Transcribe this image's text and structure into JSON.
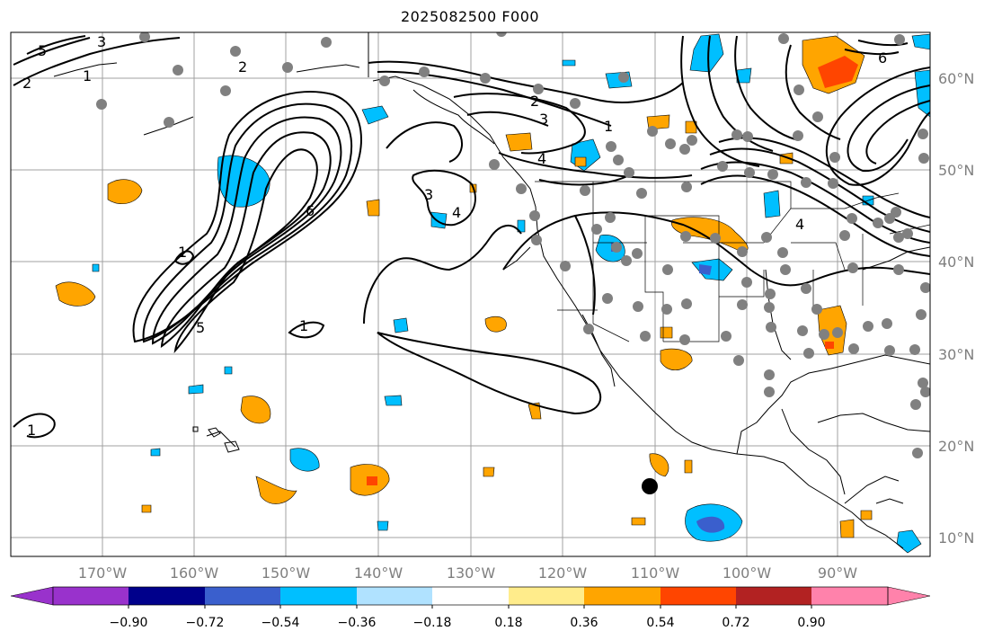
{
  "title": "2025082500 F000",
  "lon_labels": [
    "170°W",
    "160°W",
    "150°W",
    "140°W",
    "130°W",
    "120°W",
    "110°W",
    "100°W",
    "90°W"
  ],
  "lat_labels": [
    "60°N",
    "50°N",
    "40°N",
    "30°N",
    "20°N",
    "10°N"
  ],
  "colorbar": {
    "ticks": [
      "−0.90",
      "−0.72",
      "−0.54",
      "−0.36",
      "−0.18",
      "0.18",
      "0.36",
      "0.54",
      "0.72",
      "0.90"
    ],
    "colors": [
      "#9932cc",
      "#00008b",
      "#3a5fcd",
      "#00bfff",
      "#b0e2ff",
      "#ffffff",
      "#ffec8b",
      "#ffa500",
      "#ff4500",
      "#b22222",
      "#ff82ab"
    ]
  },
  "contour_labels": [
    "1",
    "2",
    "3",
    "4",
    "5",
    "6"
  ],
  "colors": {
    "grid": "#a0a0a0",
    "station": "#808080",
    "marker": "#000000",
    "neg_fill": "#00bfff",
    "pos_fill": "#ffa500"
  }
}
